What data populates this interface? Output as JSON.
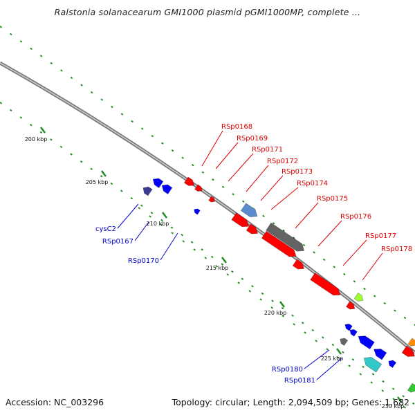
{
  "title": "Ralstonia solanacearum GMI1000 plasmid pGMI1000MP, complete ...",
  "footer": {
    "accession": "Accession: NC_003296",
    "summary": "Topology: circular; Length: 2,094,509 bp; Genes: 1,682"
  },
  "colors": {
    "backbone": "#888888",
    "tick": "#228B22",
    "forward_label": "#dd0000",
    "reverse_label": "#0000cc"
  },
  "scale_labels": [
    "200 kbp",
    "205 kbp",
    "210 kbp",
    "215 kbp",
    "220 kbp",
    "225 kbp",
    "230 kbp"
  ],
  "genes_forward_labeled": [
    "RSp0168",
    "RSp0169",
    "RSp0171",
    "RSp0172",
    "RSp0173",
    "RSp0174",
    "RSp0175",
    "RSp0176",
    "RSp0177",
    "RSp0178"
  ],
  "genes_reverse_labeled": [
    "cysC2",
    "RSp0167",
    "RSp0170",
    "RSp0180",
    "RSp0181"
  ],
  "feature_colors": {
    "red": "#ff0000",
    "blue": "#0000ff",
    "purple": "#3c3c96",
    "steelblue": "#5a8ccd",
    "gray": "#646464",
    "lime": "#a0ff32",
    "cyan": "#32c8c8",
    "orange": "#ff8c00",
    "green": "#32c832"
  }
}
